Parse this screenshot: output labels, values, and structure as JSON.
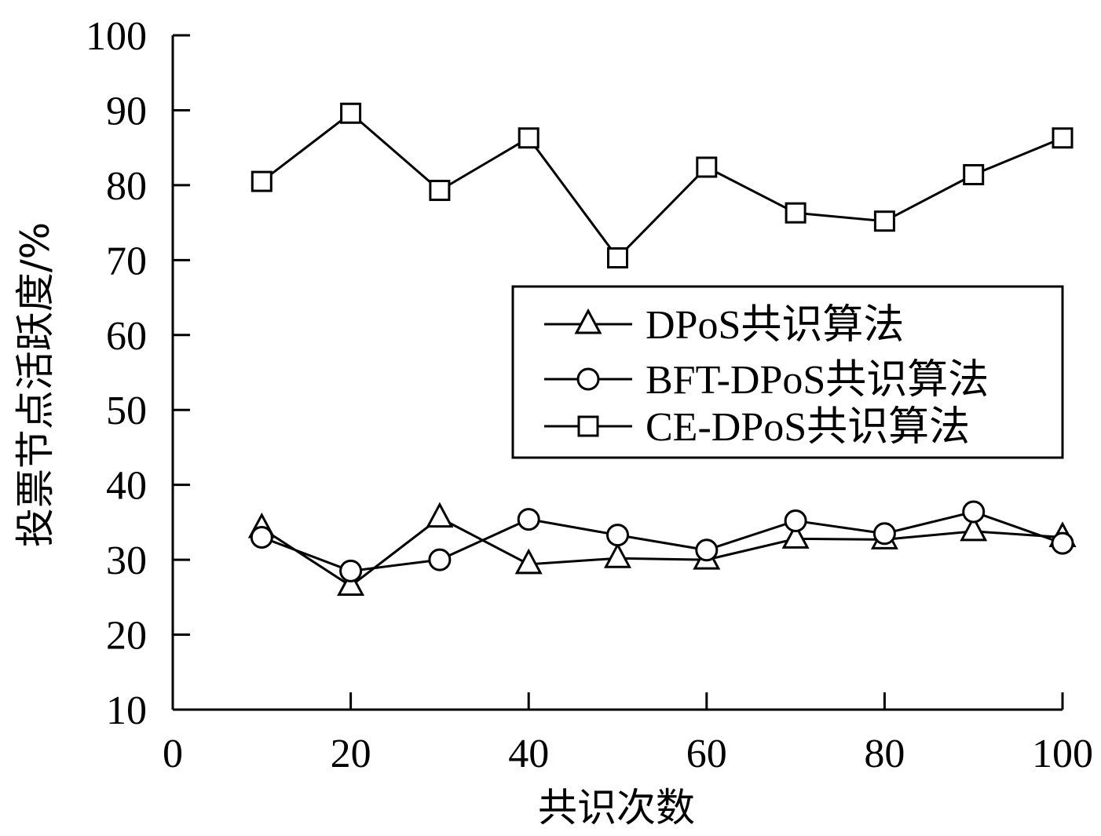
{
  "chart_data": {
    "type": "line",
    "xlabel": "共识次数",
    "ylabel": "投票节点活跃度/%",
    "xlim": [
      0,
      100
    ],
    "ylim": [
      10,
      100
    ],
    "xticks": [
      0,
      20,
      40,
      60,
      80,
      100
    ],
    "yticks": [
      10,
      20,
      30,
      40,
      50,
      60,
      70,
      80,
      90,
      100
    ],
    "x": [
      10,
      20,
      30,
      40,
      50,
      60,
      70,
      80,
      90,
      100
    ],
    "grid": false,
    "legend_position": "right",
    "series": [
      {
        "name": "DPoS共识算法",
        "marker": "triangle",
        "values": [
          34.2,
          26.5,
          35.6,
          29.4,
          30.2,
          30.0,
          32.8,
          32.7,
          33.8,
          33.0
        ]
      },
      {
        "name": "BFT-DPoS共识算法",
        "marker": "circle",
        "values": [
          33.0,
          28.5,
          30.0,
          35.4,
          33.3,
          31.3,
          35.2,
          33.5,
          36.4,
          32.2
        ]
      },
      {
        "name": "CE-DPoS共识算法",
        "marker": "square",
        "values": [
          80.5,
          89.6,
          79.3,
          86.3,
          70.3,
          82.4,
          76.3,
          75.2,
          81.4,
          86.3
        ]
      }
    ]
  }
}
